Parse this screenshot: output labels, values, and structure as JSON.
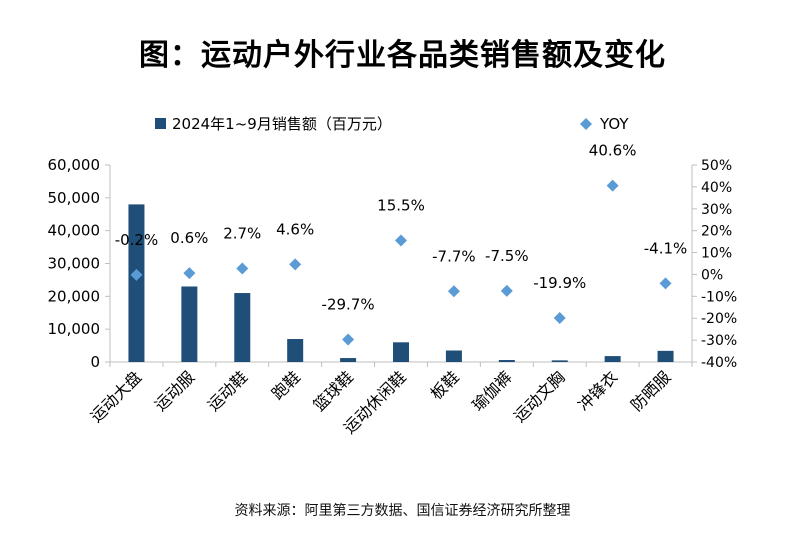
{
  "title": "图：运动户外行业各品类销售额及变化",
  "source": "资料来源：阿里第三方数据、国信证券经济研究所整理",
  "chart_data": {
    "type": "bar",
    "categories": [
      "运动大盘",
      "运动服",
      "运动鞋",
      "跑鞋",
      "篮球鞋",
      "运动休闲鞋",
      "板鞋",
      "瑜伽裤",
      "运动文胸",
      "冲锋衣",
      "防晒服"
    ],
    "series": [
      {
        "name": "2024年1~9月销售额（百万元）",
        "type": "bar",
        "axis": "left",
        "color": "#1f4e79",
        "values": [
          48000,
          23000,
          21000,
          7000,
          1200,
          6000,
          3500,
          600,
          500,
          1800,
          3400
        ]
      },
      {
        "name": "YOY",
        "type": "scatter",
        "axis": "right",
        "color": "#5b9bd5",
        "values": [
          -0.2,
          0.6,
          2.7,
          4.6,
          -29.7,
          15.5,
          -7.7,
          -7.5,
          -19.9,
          40.6,
          -4.1
        ],
        "labels": [
          "-0.2%",
          "0.6%",
          "2.7%",
          "4.6%",
          "-29.7%",
          "15.5%",
          "-7.7%",
          "-7.5%",
          "-19.9%",
          "40.6%",
          "-4.1%"
        ]
      }
    ],
    "y_left": {
      "range": [
        0,
        60000
      ],
      "ticks": [
        0,
        10000,
        20000,
        30000,
        40000,
        50000,
        60000
      ],
      "tick_labels": [
        "0",
        "10,000",
        "20,000",
        "30,000",
        "40,000",
        "50,000",
        "60,000"
      ]
    },
    "y_right": {
      "range": [
        -40,
        50
      ],
      "ticks": [
        -40,
        -30,
        -20,
        -10,
        0,
        10,
        20,
        30,
        40,
        50
      ],
      "tick_labels": [
        "-40%",
        "-30%",
        "-20%",
        "-10%",
        "0%",
        "10%",
        "20%",
        "30%",
        "40%",
        "50%"
      ]
    },
    "grid": false,
    "legend": "top"
  }
}
